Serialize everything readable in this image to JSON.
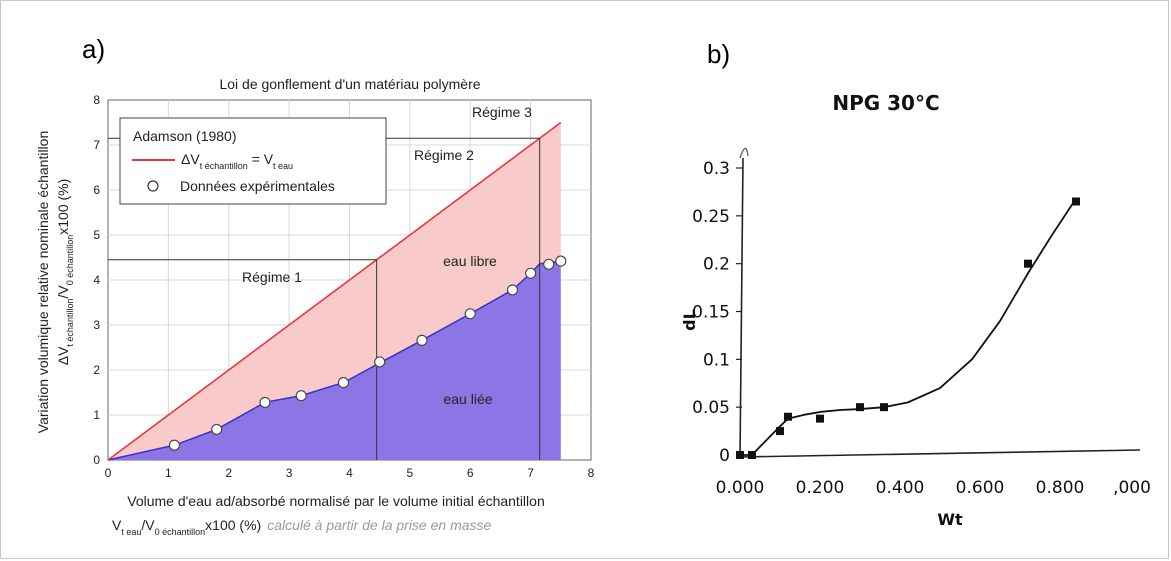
{
  "panels": {
    "a_label": "a)",
    "b_label": "b)"
  },
  "chart_data": [
    {
      "type": "scatter",
      "title": "Loi de gonflement d'un matériau polymère",
      "xlabel": "Volume d'eau ad/absorbé normalisé par le volume initial échantillon",
      "xlabel_line2": {
        "v1": "V",
        "s1": "t eau",
        "slash": "/V",
        "s2": "0 échantillon",
        "tail": "x100 (%)",
        "note": "calculé à partir de la prise en masse"
      },
      "ylabel": "Variation volumique relative nominale échantillon",
      "ylabel_line2": {
        "d": "ΔV",
        "s1": "t échantillon",
        "slash": "/V",
        "s2": "0 échantillon",
        "tail": "x100 (%)"
      },
      "xlim": [
        0,
        8
      ],
      "ylim": [
        0,
        8
      ],
      "xticks": [
        "0",
        "1",
        "2",
        "3",
        "4",
        "5",
        "6",
        "7",
        "8"
      ],
      "yticks": [
        "0",
        "1",
        "2",
        "3",
        "4",
        "5",
        "6",
        "7",
        "8"
      ],
      "grid": true,
      "legend": {
        "placement": "top-left",
        "title": "Adamson (1980)",
        "line_label": {
          "a": "ΔV",
          "sa": "t échantillon",
          "eq": " = V",
          "sb": "t eau"
        },
        "points_label": "Données expérimentales"
      },
      "line_series": {
        "x": [
          0,
          7.5
        ],
        "y": [
          0,
          7.5
        ],
        "color": "#e8383d"
      },
      "fit_curve": {
        "x": [
          0,
          1.1,
          1.8,
          2.6,
          3.2,
          3.9,
          4.45,
          5.2,
          6.0,
          6.7,
          7.0,
          7.15,
          7.3,
          7.5
        ],
        "y": [
          0,
          0.33,
          0.68,
          1.28,
          1.43,
          1.72,
          2.12,
          2.66,
          3.25,
          3.78,
          4.15,
          4.36,
          4.38,
          4.42
        ]
      },
      "points": {
        "x": [
          1.1,
          1.8,
          2.6,
          3.2,
          3.9,
          4.5,
          5.2,
          6.0,
          6.7,
          7.0,
          7.3,
          7.5
        ],
        "y": [
          0.33,
          0.68,
          1.28,
          1.43,
          1.72,
          2.18,
          2.66,
          3.25,
          3.78,
          4.15,
          4.35,
          4.42
        ]
      },
      "regions": {
        "free": "eau libre",
        "bound": "eau liée",
        "free_color": "#f9caca",
        "bound_color": "#8c76e6"
      },
      "regime_lines": [
        {
          "x": 4.45,
          "y": 4.45,
          "label": "Régime 1"
        },
        {
          "x": 7.15,
          "y": 7.15,
          "label": "Régime 2"
        }
      ],
      "regime3_label": "Régime 3"
    },
    {
      "type": "line",
      "title": "NPG 30°C",
      "xlabel": "Wt",
      "ylabel": "dL",
      "xticks": [
        "0.000",
        "0.200",
        "0.400",
        "0.600",
        "0.800",
        ",000"
      ],
      "yticks": [
        "0",
        "0.05",
        "0.1",
        "0.15",
        "0.2",
        "0.25",
        "0.3"
      ],
      "xlim": [
        0,
        1.0
      ],
      "ylim": [
        0,
        0.3
      ],
      "points": {
        "x": [
          0.0,
          0.03,
          0.1,
          0.12,
          0.2,
          0.3,
          0.36,
          0.72,
          0.84
        ],
        "y": [
          0.0,
          0.0,
          0.025,
          0.04,
          0.038,
          0.05,
          0.05,
          0.2,
          0.265
        ]
      },
      "curve": {
        "x": [
          0.0,
          0.03,
          0.06,
          0.1,
          0.12,
          0.16,
          0.2,
          0.25,
          0.3,
          0.36,
          0.42,
          0.5,
          0.58,
          0.65,
          0.72,
          0.78,
          0.84
        ],
        "y": [
          0.0,
          0.0,
          0.013,
          0.03,
          0.038,
          0.042,
          0.045,
          0.047,
          0.048,
          0.05,
          0.055,
          0.07,
          0.1,
          0.14,
          0.19,
          0.23,
          0.268
        ]
      }
    }
  ]
}
